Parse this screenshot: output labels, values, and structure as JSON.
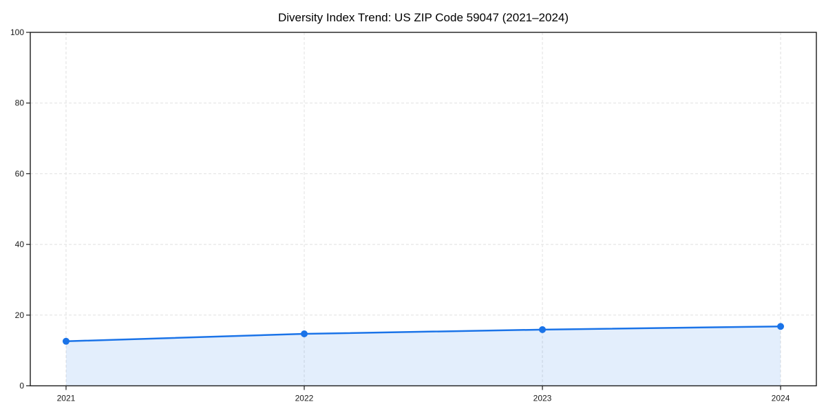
{
  "chart_data": {
    "type": "line",
    "title": "Diversity Index Trend: US ZIP Code 59047 (2021–2024)",
    "x": [
      2021,
      2022,
      2023,
      2024
    ],
    "series": [
      {
        "name": "Diversity Index",
        "values": [
          12.6,
          14.7,
          15.9,
          16.8
        ]
      }
    ],
    "xlabel": "",
    "ylabel": "",
    "ylim": [
      0,
      100
    ],
    "yticks": [
      0,
      20,
      40,
      60,
      80,
      100
    ],
    "xticks": [
      "2021",
      "2022",
      "2023",
      "2024"
    ],
    "grid": "dashed",
    "legend": "none",
    "area_fill": true,
    "colors": {
      "line": "#1a73e8",
      "marker": "#1a73e8",
      "fill": "rgba(26,115,232,0.12)",
      "grid": "#e0e0e0",
      "axis": "#1a1a1a",
      "background": "#ffffff"
    }
  }
}
